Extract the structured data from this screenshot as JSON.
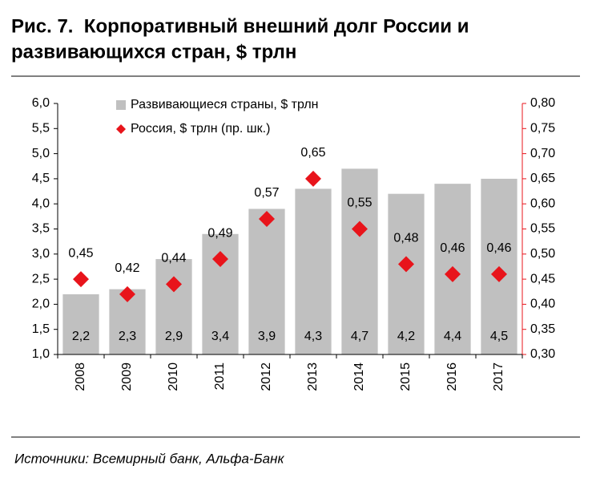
{
  "chart_data": {
    "type": "bar",
    "title": [
      "Рис. 7.  Корпоративный внешний долг России и",
      "развивающихся стран, $ трлн"
    ],
    "source": "Источники: Всемирный банк, Альфа-Банк",
    "categories": [
      "2008",
      "2009",
      "2010",
      "2011",
      "2012",
      "2013",
      "2014",
      "2015",
      "2016",
      "2017"
    ],
    "series": [
      {
        "name": "Развивающиеся страны, $ трлн",
        "type": "bar",
        "color": "#c0c0c0",
        "values": [
          2.2,
          2.3,
          2.9,
          3.4,
          3.9,
          4.3,
          4.7,
          4.2,
          4.4,
          4.5
        ],
        "value_labels": [
          "2,2",
          "2,3",
          "2,9",
          "3,4",
          "3,9",
          "4,3",
          "4,7",
          "4,2",
          "4,4",
          "4,5"
        ]
      },
      {
        "name": "Россия, $ трлн (пр. шк.)",
        "type": "scatter",
        "axis": "y2",
        "color": "#e8141b",
        "values": [
          0.45,
          0.42,
          0.44,
          0.49,
          0.57,
          0.65,
          0.55,
          0.48,
          0.46,
          0.46
        ],
        "value_labels": [
          "0,45",
          "0,42",
          "0,44",
          "0,49",
          "0,57",
          "0,65",
          "0,55",
          "0,48",
          "0,46",
          "0,46"
        ]
      }
    ],
    "ylim": [
      1,
      6
    ],
    "yticks": [
      {
        "value": 1,
        "label": "1,0"
      },
      {
        "value": 1.5,
        "label": "1,5"
      },
      {
        "value": 2,
        "label": "2,0"
      },
      {
        "value": 2.5,
        "label": "2,5"
      },
      {
        "value": 3,
        "label": "3,0"
      },
      {
        "value": 3.5,
        "label": "3,5"
      },
      {
        "value": 4,
        "label": "4,0"
      },
      {
        "value": 4.5,
        "label": "4,5"
      },
      {
        "value": 5,
        "label": "5,0"
      },
      {
        "value": 5.5,
        "label": "5,5"
      },
      {
        "value": 6,
        "label": "6,0"
      }
    ],
    "y2lim": [
      0.3,
      0.8
    ],
    "y2ticks": [
      {
        "value": 0.3,
        "label": "0,30"
      },
      {
        "value": 0.35,
        "label": "0,35"
      },
      {
        "value": 0.4,
        "label": "0,40"
      },
      {
        "value": 0.45,
        "label": "0,45"
      },
      {
        "value": 0.5,
        "label": "0,50"
      },
      {
        "value": 0.55,
        "label": "0,55"
      },
      {
        "value": 0.6,
        "label": "0,60"
      },
      {
        "value": 0.65,
        "label": "0,65"
      },
      {
        "value": 0.7,
        "label": "0,70"
      },
      {
        "value": 0.75,
        "label": "0,75"
      },
      {
        "value": 0.8,
        "label": "0,80"
      }
    ],
    "y2color": "#e8141b",
    "legend": "top-left",
    "grid": false
  }
}
